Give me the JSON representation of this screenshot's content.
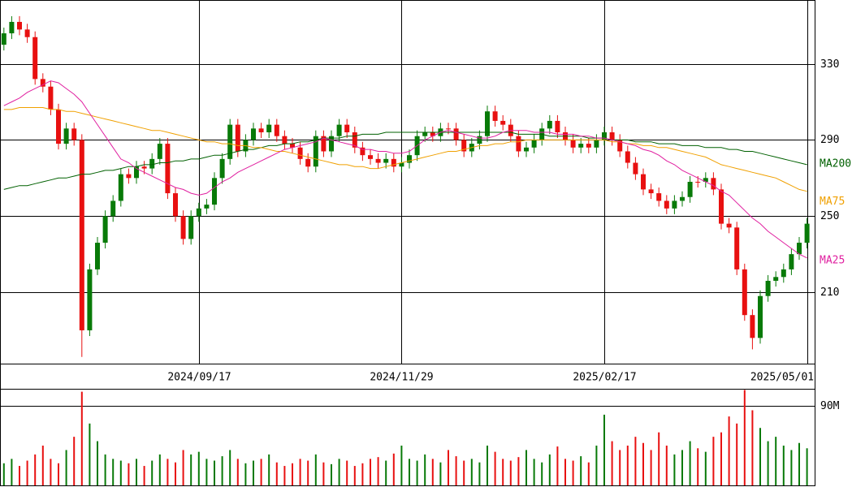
{
  "chart_data": {
    "type": "candlestick",
    "categories": [
      null,
      null,
      null,
      null,
      null,
      null,
      null,
      null,
      null,
      null,
      null,
      null,
      null,
      null,
      null,
      null,
      null,
      null,
      null,
      null,
      null,
      null,
      null,
      null,
      null,
      "2024/09/17",
      null,
      null,
      null,
      null,
      null,
      null,
      null,
      null,
      null,
      null,
      null,
      null,
      null,
      null,
      null,
      null,
      null,
      null,
      null,
      null,
      null,
      null,
      null,
      null,
      null,
      "2024/11/29",
      null,
      null,
      null,
      null,
      null,
      null,
      null,
      null,
      null,
      null,
      null,
      null,
      null,
      null,
      null,
      null,
      null,
      null,
      null,
      null,
      null,
      null,
      null,
      null,
      null,
      "2025/02/17",
      null,
      null,
      null,
      null,
      null,
      null,
      null,
      null,
      null,
      null,
      null,
      null,
      null,
      null,
      null,
      null,
      null,
      null,
      null,
      null,
      null,
      null,
      null,
      null,
      null,
      "2025/05/01"
    ],
    "open": [
      340,
      346,
      352,
      348,
      344,
      322,
      318,
      306,
      288,
      296,
      290,
      190,
      222,
      236,
      250,
      258,
      272,
      270,
      276,
      275,
      280,
      288,
      262,
      250,
      238,
      250,
      254,
      256,
      270,
      280,
      298,
      284,
      290,
      296,
      294,
      298,
      292,
      288,
      286,
      280,
      276,
      292,
      284,
      292,
      298,
      294,
      286,
      282,
      280,
      278,
      280,
      276,
      278,
      282,
      292,
      294,
      292,
      296,
      296,
      290,
      284,
      288,
      292,
      305,
      300,
      298,
      292,
      284,
      286,
      290,
      296,
      300,
      294,
      290,
      286,
      288,
      286,
      290,
      294,
      290,
      284,
      278,
      272,
      264,
      262,
      258,
      254,
      258,
      260,
      268,
      268,
      270,
      264,
      246,
      244,
      222,
      198,
      186,
      208,
      216,
      218,
      222,
      230,
      236
    ],
    "high": [
      349,
      355,
      355,
      351,
      347,
      325,
      321,
      309,
      299,
      299,
      293,
      225,
      239,
      253,
      261,
      275,
      275,
      279,
      279,
      283,
      291,
      291,
      265,
      253,
      253,
      257,
      259,
      273,
      283,
      301,
      301,
      293,
      299,
      299,
      301,
      301,
      295,
      291,
      289,
      283,
      295,
      295,
      295,
      301,
      301,
      297,
      289,
      285,
      283,
      283,
      283,
      281,
      285,
      295,
      297,
      297,
      299,
      299,
      299,
      293,
      291,
      295,
      308,
      308,
      303,
      301,
      295,
      289,
      293,
      299,
      303,
      303,
      297,
      293,
      291,
      291,
      293,
      297,
      297,
      293,
      287,
      281,
      275,
      267,
      265,
      261,
      261,
      263,
      271,
      271,
      273,
      273,
      267,
      249,
      247,
      225,
      201,
      211,
      219,
      221,
      225,
      233,
      239,
      249
    ],
    "low": [
      337,
      343,
      345,
      341,
      319,
      315,
      303,
      285,
      285,
      287,
      176,
      187,
      219,
      233,
      247,
      255,
      267,
      267,
      272,
      272,
      277,
      259,
      247,
      235,
      235,
      247,
      251,
      253,
      267,
      277,
      281,
      281,
      287,
      291,
      291,
      289,
      285,
      283,
      277,
      273,
      273,
      281,
      281,
      289,
      291,
      283,
      279,
      277,
      275,
      275,
      273,
      273,
      275,
      279,
      289,
      289,
      289,
      293,
      287,
      281,
      281,
      285,
      289,
      297,
      295,
      289,
      281,
      281,
      283,
      287,
      293,
      291,
      287,
      283,
      283,
      283,
      283,
      287,
      287,
      281,
      275,
      269,
      261,
      259,
      255,
      251,
      251,
      255,
      257,
      265,
      265,
      261,
      243,
      241,
      219,
      195,
      180,
      183,
      205,
      213,
      215,
      219,
      227,
      233
    ],
    "close": [
      346,
      352,
      348,
      344,
      322,
      318,
      306,
      288,
      296,
      290,
      190,
      222,
      236,
      250,
      258,
      272,
      270,
      276,
      275,
      280,
      288,
      262,
      250,
      238,
      250,
      254,
      256,
      270,
      280,
      298,
      284,
      290,
      296,
      294,
      298,
      292,
      288,
      286,
      280,
      276,
      292,
      284,
      292,
      298,
      294,
      286,
      282,
      280,
      278,
      280,
      276,
      278,
      282,
      292,
      294,
      292,
      296,
      296,
      290,
      284,
      288,
      292,
      305,
      300,
      298,
      292,
      284,
      286,
      290,
      296,
      300,
      294,
      290,
      286,
      288,
      286,
      290,
      294,
      290,
      284,
      278,
      272,
      264,
      262,
      258,
      254,
      258,
      260,
      268,
      268,
      270,
      264,
      246,
      244,
      222,
      198,
      186,
      208,
      216,
      218,
      222,
      230,
      236,
      246
    ],
    "up_color": "#087a08",
    "down_color": "#e81010",
    "ylim": [
      172.5,
      363.5
    ],
    "yticks": [
      330,
      290,
      250,
      210
    ],
    "grid": true,
    "series": [
      {
        "name": "MA200",
        "color": "#006000",
        "values": [
          264,
          265,
          266,
          266,
          267,
          268,
          269,
          270,
          270,
          271,
          272,
          272,
          273,
          274,
          274,
          275,
          276,
          276,
          277,
          277,
          278,
          278,
          279,
          279,
          280,
          280,
          281,
          282,
          282,
          283,
          284,
          285,
          285,
          286,
          287,
          287,
          288,
          288,
          289,
          289,
          290,
          291,
          291,
          291,
          292,
          292,
          293,
          293,
          293,
          294,
          294,
          294,
          294,
          294,
          294,
          294,
          294,
          294,
          294,
          294,
          294,
          294,
          294,
          294,
          294,
          294,
          293,
          293,
          293,
          293,
          292,
          292,
          292,
          292,
          292,
          291,
          291,
          291,
          290,
          290,
          290,
          289,
          289,
          289,
          288,
          288,
          288,
          287,
          287,
          287,
          286,
          286,
          286,
          285,
          285,
          284,
          284,
          283,
          282,
          281,
          280,
          279,
          278,
          277
        ]
      },
      {
        "name": "MA75",
        "color": "#f0a000",
        "values": [
          306,
          306,
          307,
          307,
          307,
          307,
          306,
          306,
          305,
          305,
          304,
          303,
          302,
          301,
          300,
          299,
          298,
          297,
          296,
          295,
          295,
          294,
          293,
          292,
          291,
          290,
          289,
          289,
          288,
          288,
          287,
          287,
          286,
          286,
          285,
          284,
          284,
          283,
          282,
          281,
          280,
          279,
          278,
          277,
          277,
          276,
          276,
          275,
          275,
          276,
          277,
          278,
          279,
          280,
          281,
          282,
          283,
          284,
          284,
          285,
          286,
          287,
          287,
          288,
          288,
          289,
          289,
          290,
          290,
          290,
          290,
          290,
          290,
          290,
          290,
          290,
          290,
          290,
          289,
          289,
          288,
          288,
          287,
          287,
          286,
          286,
          285,
          284,
          283,
          282,
          281,
          279,
          277,
          276,
          275,
          274,
          273,
          272,
          271,
          270,
          268,
          266,
          264,
          263
        ]
      },
      {
        "name": "MA25",
        "color": "#e020a0",
        "values": [
          308,
          310,
          312,
          315,
          317,
          319,
          321,
          320,
          317,
          314,
          310,
          304,
          298,
          292,
          286,
          280,
          278,
          275,
          273,
          271,
          269,
          267,
          265,
          264,
          262,
          261,
          262,
          265,
          268,
          270,
          273,
          275,
          277,
          279,
          281,
          283,
          285,
          286,
          287,
          288,
          289,
          291,
          290,
          289,
          288,
          287,
          285,
          285,
          284,
          284,
          283,
          283,
          284,
          287,
          290,
          292,
          294,
          295,
          294,
          293,
          292,
          291,
          291,
          292,
          294,
          295,
          295,
          295,
          294,
          294,
          294,
          293,
          293,
          293,
          292,
          292,
          291,
          291,
          290,
          289,
          288,
          287,
          285,
          284,
          282,
          279,
          277,
          274,
          272,
          270,
          268,
          266,
          263,
          261,
          257,
          253,
          249,
          246,
          242,
          239,
          236,
          233,
          230,
          228
        ]
      }
    ],
    "volume": {
      "values": [
        25,
        30,
        22,
        28,
        35,
        45,
        30,
        25,
        40,
        55,
        106,
        70,
        50,
        35,
        30,
        28,
        25,
        30,
        22,
        28,
        35,
        30,
        26,
        40,
        35,
        38,
        30,
        28,
        33,
        40,
        30,
        25,
        28,
        30,
        35,
        26,
        22,
        25,
        30,
        28,
        35,
        26,
        24,
        30,
        28,
        22,
        25,
        30,
        32,
        28,
        36,
        45,
        30,
        28,
        35,
        30,
        26,
        40,
        33,
        28,
        30,
        26,
        45,
        38,
        30,
        28,
        32,
        40,
        30,
        26,
        35,
        44,
        30,
        28,
        33,
        26,
        45,
        80,
        50,
        40,
        45,
        55,
        48,
        40,
        60,
        45,
        35,
        40,
        50,
        42,
        38,
        55,
        60,
        78,
        70,
        108,
        85,
        65,
        50,
        55,
        45,
        40,
        48,
        42
      ],
      "ylim": [
        0,
        108.4
      ],
      "yticks": [
        {
          "value": 90,
          "label": "90M"
        }
      ]
    }
  }
}
